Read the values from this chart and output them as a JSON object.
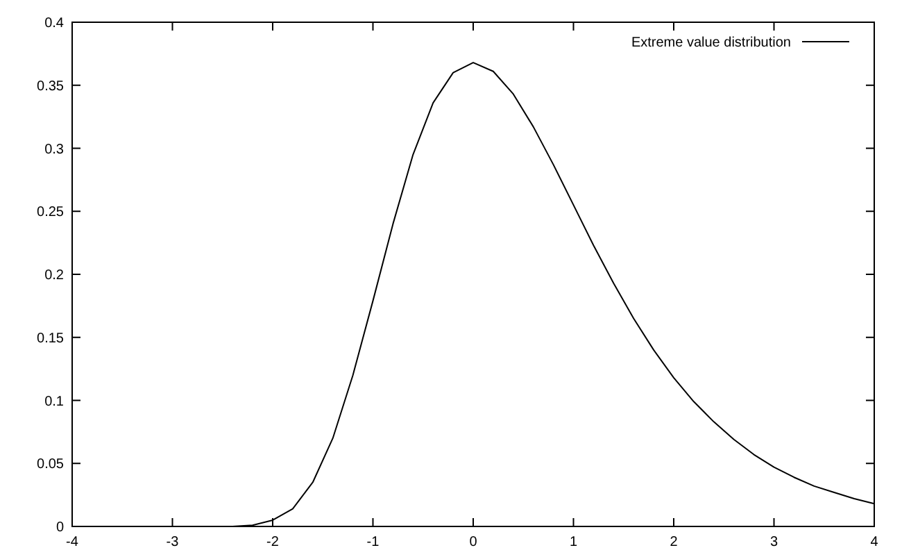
{
  "chart_data": {
    "type": "line",
    "x": [
      -4,
      -3.5,
      -3,
      -2.6,
      -2.4,
      -2.2,
      -2,
      -1.8,
      -1.6,
      -1.4,
      -1.2,
      -1,
      -0.8,
      -0.6,
      -0.4,
      -0.2,
      0,
      0.2,
      0.4,
      0.6,
      0.8,
      1,
      1.2,
      1.4,
      1.6,
      1.8,
      2,
      2.2,
      2.4,
      2.6,
      2.8,
      3,
      3.2,
      3.4,
      3.6,
      3.8,
      4
    ],
    "series": [
      {
        "name": "Extreme value distribution",
        "color": "#000000",
        "values": [
          0,
          0,
          0,
          0,
          0,
          0.001,
          0.005,
          0.014,
          0.035,
          0.07,
          0.12,
          0.179,
          0.24,
          0.295,
          0.336,
          0.36,
          0.368,
          0.361,
          0.343,
          0.317,
          0.287,
          0.255,
          0.223,
          0.193,
          0.165,
          0.14,
          0.118,
          0.099,
          0.083,
          0.069,
          0.057,
          0.047,
          0.039,
          0.032,
          0.027,
          0.022,
          0.018
        ]
      }
    ],
    "xlim": [
      -4,
      4
    ],
    "xticks": [
      -4,
      -3,
      -2,
      -1,
      0,
      1,
      2,
      3,
      4
    ],
    "ylim": [
      0,
      0.4
    ],
    "yticks": [
      0,
      0.05,
      0.1,
      0.15,
      0.2,
      0.25,
      0.3,
      0.35,
      0.4
    ],
    "grid": false,
    "legend": "top right",
    "marker": "none",
    "line_style": "solid"
  }
}
